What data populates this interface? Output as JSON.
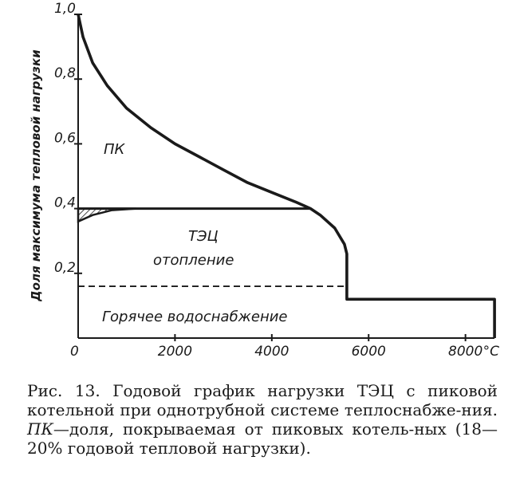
{
  "chart_data": {
    "type": "area",
    "ylabel": "Доля максимума тепловой нагрузки",
    "x_unit": "°C",
    "xlim": [
      0,
      8500
    ],
    "ylim": [
      0,
      1.0
    ],
    "x_ticks": [
      {
        "value": 0,
        "label": "0"
      },
      {
        "value": 2000,
        "label": "2000"
      },
      {
        "value": 4000,
        "label": "4000"
      },
      {
        "value": 6000,
        "label": "6000"
      },
      {
        "value": 8000,
        "label": "8000"
      }
    ],
    "y_ticks": [
      {
        "value": 0.2,
        "label": "0,2"
      },
      {
        "value": 0.4,
        "label": "0,4"
      },
      {
        "value": 0.6,
        "label": "0,6"
      },
      {
        "value": 0.8,
        "label": "0,8"
      },
      {
        "value": 1.0,
        "label": "1,0"
      }
    ],
    "load_curve": [
      [
        0,
        1.0
      ],
      [
        100,
        0.93
      ],
      [
        300,
        0.85
      ],
      [
        600,
        0.78
      ],
      [
        1000,
        0.71
      ],
      [
        1500,
        0.65
      ],
      [
        2000,
        0.6
      ],
      [
        2500,
        0.56
      ],
      [
        3000,
        0.52
      ],
      [
        3500,
        0.48
      ],
      [
        4000,
        0.45
      ],
      [
        4500,
        0.42
      ],
      [
        4800,
        0.4
      ],
      [
        5000,
        0.38
      ],
      [
        5300,
        0.34
      ],
      [
        5500,
        0.29
      ],
      [
        5550,
        0.26
      ],
      [
        5550,
        0.12
      ],
      [
        8600,
        0.12
      ],
      [
        8600,
        0.0
      ]
    ],
    "chp_line": [
      [
        0,
        0.4
      ],
      [
        4800,
        0.4
      ]
    ],
    "chp_lower_curve": [
      [
        0,
        0.36
      ],
      [
        300,
        0.38
      ],
      [
        700,
        0.395
      ],
      [
        1200,
        0.4
      ]
    ],
    "hot_water_line": [
      [
        0,
        0.16
      ],
      [
        5550,
        0.16
      ]
    ],
    "regions": {
      "peak": "ПК",
      "chp_line1": "ТЭЦ",
      "chp_line2": "отопление",
      "hot_water": "Горячее водоснабжение"
    }
  },
  "caption": {
    "prefix": "Рис. 13.",
    "text1": " Годовой график нагрузки ТЭЦ с пиковой котельной при однотрубной системе теплоснабже-ния. ",
    "abbr": "ПК",
    "text2": "—доля, покрываемая от пиковых котель-ных (18—20% годовой тепловой нагрузки)."
  }
}
